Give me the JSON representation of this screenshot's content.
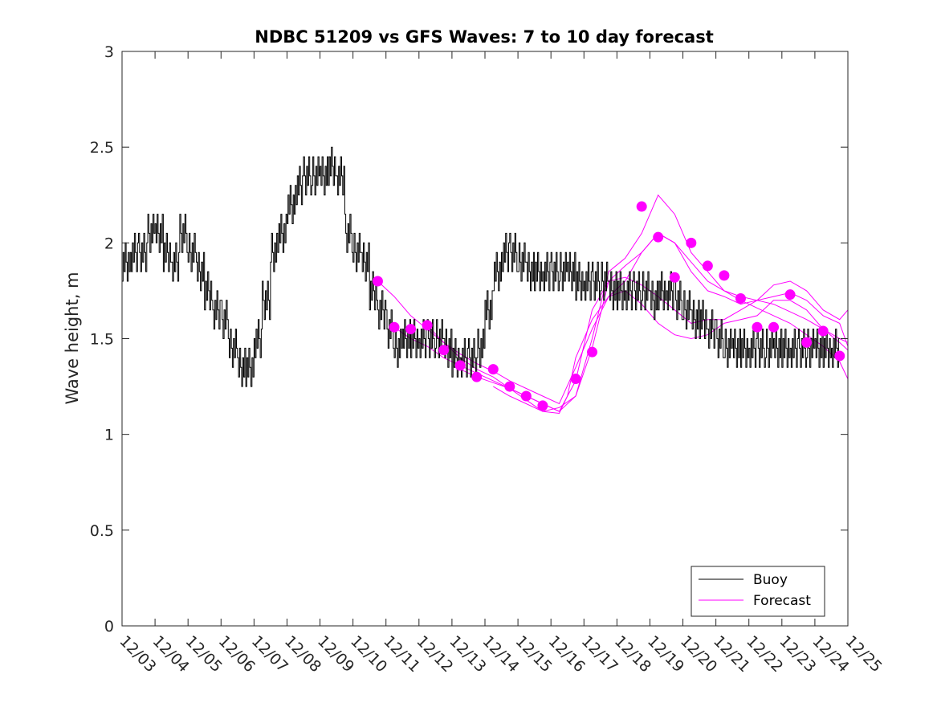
{
  "chart_data": {
    "type": "line",
    "title": "NDBC 51209 vs GFS Waves: 7 to 10 day forecast",
    "xlabel": "",
    "ylabel": "Wave height, m",
    "xlim": [
      0,
      22
    ],
    "ylim": [
      0,
      3
    ],
    "grid": false,
    "legend_position": "bottom-right",
    "y_ticks": [
      0,
      0.5,
      1,
      1.5,
      2,
      2.5,
      3
    ],
    "y_tick_labels": [
      "0",
      "0.5",
      "1",
      "1.5",
      "2",
      "2.5",
      "3"
    ],
    "x_ticks": [
      0,
      1,
      2,
      3,
      4,
      5,
      6,
      7,
      8,
      9,
      10,
      11,
      12,
      13,
      14,
      15,
      16,
      17,
      18,
      19,
      20,
      21,
      22
    ],
    "x_tick_labels": [
      "12/03",
      "12/04",
      "12/05",
      "12/06",
      "12/07",
      "12/08",
      "12/09",
      "12/10",
      "12/11",
      "12/12",
      "12/13",
      "12/14",
      "12/15",
      "12/16",
      "12/17",
      "12/18",
      "12/19",
      "12/20",
      "12/21",
      "12/22",
      "12/23",
      "12/24",
      "12/25"
    ],
    "colors": {
      "buoy": "#000000",
      "forecast": "#ff00ff"
    },
    "series": [
      {
        "name": "Buoy",
        "kind": "line",
        "x": [
          0,
          0.25,
          0.5,
          0.75,
          1,
          1.25,
          1.5,
          1.75,
          2,
          2.25,
          2.5,
          2.75,
          3,
          3.25,
          3.5,
          3.75,
          4,
          4.25,
          4.5,
          4.75,
          5,
          5.25,
          5.5,
          5.75,
          6,
          6.25,
          6.5,
          6.75,
          7,
          7.25,
          7.5,
          7.75,
          8,
          8.25,
          8.5,
          8.75,
          9,
          9.25,
          9.5,
          9.75,
          10,
          10.25,
          10.5,
          10.75,
          11,
          11.25,
          11.5,
          11.75,
          12,
          12.25,
          12.5,
          12.75,
          13,
          13.25,
          13.5,
          13.75,
          14,
          14.25,
          14.5,
          14.75,
          15,
          15.25,
          15.5,
          15.75,
          16,
          16.25,
          16.5,
          16.75,
          17,
          17.25,
          17.5,
          17.75,
          18,
          18.25,
          18.5,
          18.75,
          19,
          19.25,
          19.5,
          19.75,
          20,
          20.25,
          20.5,
          20.75,
          21,
          21.25,
          21.5
        ],
        "values": [
          1.9,
          1.95,
          1.95,
          2.05,
          2.05,
          1.95,
          1.9,
          2.05,
          1.95,
          1.85,
          1.75,
          1.65,
          1.6,
          1.45,
          1.35,
          1.35,
          1.5,
          1.7,
          1.95,
          2.05,
          2.2,
          2.3,
          2.35,
          2.35,
          2.35,
          2.4,
          2.35,
          2.05,
          1.95,
          1.9,
          1.75,
          1.65,
          1.55,
          1.45,
          1.5,
          1.5,
          1.5,
          1.5,
          1.5,
          1.45,
          1.4,
          1.4,
          1.4,
          1.45,
          1.65,
          1.85,
          1.95,
          1.95,
          1.9,
          1.85,
          1.85,
          1.85,
          1.85,
          1.85,
          1.85,
          1.8,
          1.8,
          1.8,
          1.8,
          1.75,
          1.75,
          1.75,
          1.75,
          1.75,
          1.7,
          1.75,
          1.75,
          1.7,
          1.65,
          1.6,
          1.6,
          1.55,
          1.5,
          1.45,
          1.45,
          1.45,
          1.45,
          1.45,
          1.45,
          1.45,
          1.45,
          1.45,
          1.45,
          1.45,
          1.45,
          1.45,
          1.45
        ]
      },
      {
        "name": "Forecast",
        "kind": "lines",
        "lines": [
          {
            "x": [
              7.75,
              8.25,
              8.75,
              9.25,
              9.75,
              10.25,
              10.75,
              11.25,
              11.75,
              12.25,
              12.75,
              13.25,
              13.75,
              14.25,
              14.75,
              15.25,
              15.75,
              16.25,
              16.75,
              17.25,
              17.75,
              18.25,
              18.75,
              19.25,
              19.75,
              20.25,
              20.75,
              21.25,
              21.75,
              22
            ],
            "y": [
              1.8,
              1.72,
              1.62,
              1.55,
              1.48,
              1.4,
              1.34,
              1.3,
              1.24,
              1.18,
              1.12,
              1.14,
              1.2,
              1.45,
              1.8,
              1.88,
              1.95,
              2.05,
              2.0,
              1.9,
              1.8,
              1.75,
              1.72,
              1.7,
              1.68,
              1.64,
              1.6,
              1.55,
              1.48,
              1.44
            ]
          },
          {
            "x": [
              8.25,
              8.75,
              9.25,
              9.75,
              10.25,
              10.75,
              11.25,
              11.75,
              12.25,
              12.75,
              13.25,
              13.75,
              14.25,
              14.75,
              15.25,
              15.75,
              16.25,
              16.75,
              17.25,
              17.75,
              18.25,
              18.75,
              19.25,
              19.75,
              20.25,
              20.75,
              21.25,
              21.75,
              22
            ],
            "y": [
              1.56,
              1.5,
              1.46,
              1.4,
              1.36,
              1.32,
              1.28,
              1.24,
              1.2,
              1.16,
              1.12,
              1.2,
              1.5,
              1.85,
              1.92,
              2.05,
              2.25,
              2.15,
              1.95,
              1.85,
              1.75,
              1.7,
              1.66,
              1.62,
              1.58,
              1.52,
              1.46,
              1.38,
              1.29
            ]
          },
          {
            "x": [
              9.25,
              9.75,
              10.25,
              10.75,
              11.25,
              11.75,
              12.25,
              12.75,
              13.25,
              13.75,
              14.25,
              14.75,
              15.25,
              15.75,
              16.25,
              16.75,
              17.25,
              17.75,
              18.25,
              18.75,
              19.25,
              19.75,
              20.25,
              20.75,
              21.25,
              21.75,
              22
            ],
            "y": [
              1.57,
              1.48,
              1.42,
              1.37,
              1.33,
              1.28,
              1.24,
              1.2,
              1.16,
              1.35,
              1.55,
              1.72,
              1.8,
              1.95,
              2.05,
              2.0,
              1.85,
              1.75,
              1.72,
              1.68,
              1.7,
              1.72,
              1.74,
              1.7,
              1.62,
              1.58,
              1.46
            ]
          },
          {
            "x": [
              10.25,
              10.75,
              11.25,
              11.75,
              12.25,
              12.75,
              13.25,
              13.75,
              14.25,
              14.75,
              15.25,
              15.75,
              16.25,
              16.75,
              17.25,
              17.75,
              18.25,
              18.75,
              19.25,
              19.75,
              20.25,
              20.75,
              21.25,
              21.75,
              22
            ],
            "y": [
              1.34,
              1.3,
              1.27,
              1.24,
              1.2,
              1.16,
              1.12,
              1.28,
              1.65,
              1.8,
              1.82,
              1.78,
              1.72,
              1.65,
              1.58,
              1.6,
              1.6,
              1.65,
              1.7,
              1.78,
              1.8,
              1.75,
              1.65,
              1.6,
              1.65
            ]
          },
          {
            "x": [
              11.25,
              11.75,
              12.25,
              12.75,
              13.25,
              13.5,
              13.75,
              14.25,
              14.75,
              15.25,
              15.75,
              16.25,
              16.75,
              17.25,
              17.75,
              18.25,
              18.75,
              19.25,
              19.75,
              20.25,
              20.75,
              21.25,
              21.75,
              22
            ],
            "y": [
              1.25,
              1.2,
              1.16,
              1.12,
              1.11,
              1.2,
              1.4,
              1.6,
              1.72,
              1.75,
              1.68,
              1.58,
              1.52,
              1.5,
              1.52,
              1.58,
              1.6,
              1.62,
              1.7,
              1.7,
              1.65,
              1.55,
              1.5,
              1.48
            ]
          }
        ]
      }
    ],
    "forecast_markers": {
      "x": [
        7.75,
        8.25,
        8.75,
        9.25,
        9.75,
        10.25,
        10.75,
        11.25,
        11.75,
        12.25,
        12.75,
        13.75,
        14.25,
        15.75,
        16.25,
        16.75,
        17.25,
        17.75,
        18.25,
        18.75,
        19.25,
        19.75,
        20.25,
        20.75,
        21.25,
        21.75
      ],
      "y": [
        1.8,
        1.56,
        1.55,
        1.57,
        1.44,
        1.36,
        1.3,
        1.34,
        1.25,
        1.2,
        1.15,
        1.29,
        1.43,
        2.19,
        2.03,
        1.82,
        2.0,
        1.88,
        1.83,
        1.71,
        1.56,
        1.56,
        1.73,
        1.48,
        1.54,
        1.41
      ]
    },
    "legend": [
      {
        "label": "Buoy",
        "series": "Buoy"
      },
      {
        "label": "Forecast",
        "series": "Forecast"
      }
    ]
  }
}
